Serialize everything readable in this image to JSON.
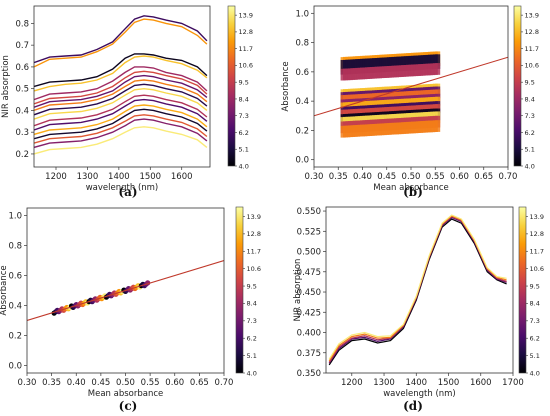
{
  "colormap": [
    "#000004",
    "#1b0c41",
    "#4a0c6b",
    "#781c6d",
    "#a52c60",
    "#cf4446",
    "#ed6925",
    "#fb9b06",
    "#f7d13d",
    "#fcffa4"
  ],
  "regression_line_color": "#c0392b",
  "chart_data": [
    {
      "id": "a",
      "type": "line",
      "panel_label": "(a)",
      "xlabel": "wavelength (nm)",
      "ylabel": "NIR absorption",
      "xlim": [
        1130,
        1690
      ],
      "ylim": [
        0.14,
        0.88
      ],
      "xticks": [
        1200,
        1300,
        1400,
        1500,
        1600
      ],
      "yticks": [
        0.2,
        0.3,
        0.4,
        0.5,
        0.6,
        0.7,
        0.8
      ],
      "grid": false,
      "colorbar": {
        "ticks": [
          "4.0",
          "5.1",
          "6.2",
          "7.3",
          "8.4",
          "9.5",
          "10.6",
          "11.7",
          "12.8",
          "13.9"
        ],
        "range": [
          4.0,
          14.5
        ]
      },
      "x": [
        1130,
        1180,
        1230,
        1280,
        1330,
        1380,
        1420,
        1450,
        1480,
        1510,
        1550,
        1600,
        1650,
        1680
      ],
      "series": [
        {
          "c": 6.0,
          "values": [
            0.62,
            0.645,
            0.65,
            0.655,
            0.68,
            0.715,
            0.775,
            0.82,
            0.835,
            0.83,
            0.815,
            0.8,
            0.765,
            0.72
          ]
        },
        {
          "c": 12.0,
          "values": [
            0.6,
            0.635,
            0.64,
            0.645,
            0.67,
            0.705,
            0.76,
            0.805,
            0.82,
            0.815,
            0.8,
            0.785,
            0.745,
            0.705
          ]
        },
        {
          "c": 4.5,
          "values": [
            0.51,
            0.53,
            0.535,
            0.54,
            0.555,
            0.59,
            0.64,
            0.66,
            0.66,
            0.655,
            0.64,
            0.63,
            0.6,
            0.56
          ]
        },
        {
          "c": 13.0,
          "values": [
            0.49,
            0.51,
            0.52,
            0.525,
            0.54,
            0.57,
            0.62,
            0.645,
            0.65,
            0.645,
            0.63,
            0.615,
            0.585,
            0.55
          ]
        },
        {
          "c": 8.5,
          "values": [
            0.45,
            0.475,
            0.48,
            0.485,
            0.5,
            0.535,
            0.575,
            0.6,
            0.6,
            0.595,
            0.575,
            0.56,
            0.53,
            0.49
          ]
        },
        {
          "c": 10.0,
          "values": [
            0.43,
            0.455,
            0.46,
            0.465,
            0.48,
            0.51,
            0.55,
            0.575,
            0.58,
            0.575,
            0.56,
            0.545,
            0.515,
            0.475
          ]
        },
        {
          "c": 7.0,
          "values": [
            0.415,
            0.44,
            0.445,
            0.45,
            0.465,
            0.49,
            0.53,
            0.555,
            0.56,
            0.555,
            0.54,
            0.525,
            0.495,
            0.46
          ]
        },
        {
          "c": 11.5,
          "values": [
            0.4,
            0.425,
            0.43,
            0.435,
            0.45,
            0.475,
            0.51,
            0.535,
            0.54,
            0.535,
            0.52,
            0.505,
            0.475,
            0.44
          ]
        },
        {
          "c": 5.5,
          "values": [
            0.38,
            0.405,
            0.41,
            0.415,
            0.43,
            0.455,
            0.49,
            0.515,
            0.52,
            0.515,
            0.5,
            0.485,
            0.455,
            0.42
          ]
        },
        {
          "c": 13.5,
          "values": [
            0.36,
            0.385,
            0.39,
            0.395,
            0.41,
            0.435,
            0.47,
            0.495,
            0.5,
            0.495,
            0.48,
            0.465,
            0.435,
            0.4
          ]
        },
        {
          "c": 9.0,
          "values": [
            0.33,
            0.355,
            0.36,
            0.365,
            0.38,
            0.405,
            0.44,
            0.465,
            0.47,
            0.465,
            0.45,
            0.435,
            0.405,
            0.37
          ]
        },
        {
          "c": 6.5,
          "values": [
            0.31,
            0.335,
            0.34,
            0.345,
            0.36,
            0.385,
            0.42,
            0.445,
            0.45,
            0.445,
            0.43,
            0.415,
            0.385,
            0.35
          ]
        },
        {
          "c": 12.5,
          "values": [
            0.29,
            0.31,
            0.315,
            0.32,
            0.335,
            0.36,
            0.395,
            0.42,
            0.425,
            0.42,
            0.405,
            0.39,
            0.36,
            0.325
          ]
        },
        {
          "c": 4.8,
          "values": [
            0.27,
            0.29,
            0.295,
            0.3,
            0.315,
            0.34,
            0.375,
            0.4,
            0.405,
            0.4,
            0.385,
            0.37,
            0.34,
            0.305
          ]
        },
        {
          "c": 10.5,
          "values": [
            0.25,
            0.27,
            0.275,
            0.28,
            0.295,
            0.32,
            0.35,
            0.375,
            0.38,
            0.375,
            0.36,
            0.345,
            0.315,
            0.28
          ]
        },
        {
          "c": 7.8,
          "values": [
            0.23,
            0.25,
            0.255,
            0.26,
            0.275,
            0.3,
            0.33,
            0.355,
            0.36,
            0.355,
            0.34,
            0.325,
            0.295,
            0.26
          ]
        },
        {
          "c": 14.0,
          "values": [
            0.2,
            0.22,
            0.225,
            0.23,
            0.245,
            0.27,
            0.3,
            0.32,
            0.325,
            0.32,
            0.305,
            0.29,
            0.265,
            0.23
          ]
        }
      ]
    },
    {
      "id": "b",
      "type": "scatter",
      "panel_label": "(b)",
      "xlabel": "Mean absorbance",
      "ylabel": "Absorbance",
      "xlim": [
        0.3,
        0.7
      ],
      "ylim": [
        -0.05,
        1.05
      ],
      "xticks": [
        "0.30",
        "0.35",
        "0.40",
        "0.45",
        "0.50",
        "0.55",
        "0.60",
        "0.65",
        "0.70"
      ],
      "yticks": [
        "0.0",
        "0.2",
        "0.4",
        "0.6",
        "0.8",
        "1.0"
      ],
      "grid": false,
      "colorbar": {
        "ticks": [
          "4.0",
          "5.1",
          "6.2",
          "7.3",
          "8.4",
          "9.5",
          "10.6",
          "11.7",
          "12.8",
          "13.9"
        ],
        "range": [
          4.0,
          14.5
        ]
      },
      "regression_line": {
        "x": [
          0.3,
          0.7
        ],
        "y": [
          0.3,
          0.7
        ]
      },
      "bands": [
        {
          "c": 12.0,
          "y0": 0.62,
          "y1": 0.72
        },
        {
          "c": 5.0,
          "y0": 0.6,
          "y1": 0.7
        },
        {
          "c": 9.0,
          "y0": 0.56,
          "y1": 0.64
        },
        {
          "c": 13.0,
          "y0": 0.42,
          "y1": 0.5
        },
        {
          "c": 7.0,
          "y0": 0.4,
          "y1": 0.48
        },
        {
          "c": 11.0,
          "y0": 0.38,
          "y1": 0.46
        },
        {
          "c": 8.0,
          "y0": 0.35,
          "y1": 0.43
        },
        {
          "c": 12.5,
          "y0": 0.33,
          "y1": 0.41
        },
        {
          "c": 6.0,
          "y0": 0.3,
          "y1": 0.38
        },
        {
          "c": 10.0,
          "y0": 0.28,
          "y1": 0.36
        },
        {
          "c": 4.5,
          "y0": 0.25,
          "y1": 0.33
        },
        {
          "c": 13.5,
          "y0": 0.23,
          "y1": 0.31
        },
        {
          "c": 9.5,
          "y0": 0.2,
          "y1": 0.28
        },
        {
          "c": 11.5,
          "y0": 0.17,
          "y1": 0.25
        }
      ]
    },
    {
      "id": "c",
      "type": "scatter",
      "panel_label": "(c)",
      "xlabel": "Mean absorbance",
      "ylabel": "Absorbance",
      "xlim": [
        0.3,
        0.7
      ],
      "ylim": [
        -0.05,
        1.05
      ],
      "xticks": [
        "0.30",
        "0.35",
        "0.40",
        "0.45",
        "0.50",
        "0.55",
        "0.60",
        "0.65",
        "0.70"
      ],
      "yticks": [
        "0.0",
        "0.2",
        "0.4",
        "0.6",
        "0.8",
        "1.0"
      ],
      "grid": false,
      "colorbar": {
        "ticks": [
          "4.0",
          "5.1",
          "6.2",
          "7.3",
          "8.4",
          "9.5",
          "10.6",
          "11.7",
          "12.8",
          "13.9"
        ],
        "range": [
          4.0,
          14.5
        ]
      },
      "regression_line": {
        "x": [
          0.3,
          0.7
        ],
        "y": [
          0.3,
          0.7
        ]
      },
      "points_range": [
        0.355,
        0.545
      ]
    },
    {
      "id": "d",
      "type": "line",
      "panel_label": "(d)",
      "xlabel": "wavelength (nm)",
      "ylabel": "NIR absorption",
      "xlim": [
        1120,
        1700
      ],
      "ylim": [
        0.35,
        0.555
      ],
      "xticks": [
        1200,
        1300,
        1400,
        1500,
        1600,
        1700
      ],
      "yticks": [
        "0.350",
        "0.375",
        "0.400",
        "0.425",
        "0.450",
        "0.475",
        "0.500",
        "0.525",
        "0.550"
      ],
      "grid": false,
      "colorbar": {
        "ticks": [
          "4.0",
          "5.1",
          "6.2",
          "7.3",
          "8.4",
          "9.5",
          "10.6",
          "11.7",
          "12.8",
          "13.9"
        ],
        "range": [
          4.0,
          14.5
        ]
      },
      "x": [
        1130,
        1160,
        1200,
        1240,
        1280,
        1320,
        1360,
        1400,
        1440,
        1480,
        1510,
        1540,
        1580,
        1620,
        1650,
        1680
      ],
      "series": [
        {
          "c": 4.0,
          "values": [
            0.36,
            0.378,
            0.39,
            0.392,
            0.387,
            0.39,
            0.405,
            0.44,
            0.49,
            0.53,
            0.54,
            0.535,
            0.51,
            0.475,
            0.465,
            0.46
          ]
        },
        {
          "c": 6.5,
          "values": [
            0.362,
            0.38,
            0.392,
            0.394,
            0.389,
            0.392,
            0.407,
            0.442,
            0.492,
            0.532,
            0.542,
            0.537,
            0.512,
            0.477,
            0.466,
            0.462
          ]
        },
        {
          "c": 9.0,
          "values": [
            0.363,
            0.382,
            0.393,
            0.396,
            0.391,
            0.393,
            0.408,
            0.443,
            0.493,
            0.533,
            0.543,
            0.538,
            0.513,
            0.478,
            0.467,
            0.463
          ]
        },
        {
          "c": 11.5,
          "values": [
            0.365,
            0.384,
            0.395,
            0.398,
            0.393,
            0.394,
            0.409,
            0.444,
            0.494,
            0.534,
            0.544,
            0.539,
            0.514,
            0.479,
            0.468,
            0.465
          ]
        },
        {
          "c": 14.0,
          "values": [
            0.367,
            0.386,
            0.397,
            0.4,
            0.395,
            0.396,
            0.41,
            0.445,
            0.495,
            0.535,
            0.545,
            0.54,
            0.515,
            0.48,
            0.469,
            0.467
          ]
        }
      ]
    }
  ]
}
